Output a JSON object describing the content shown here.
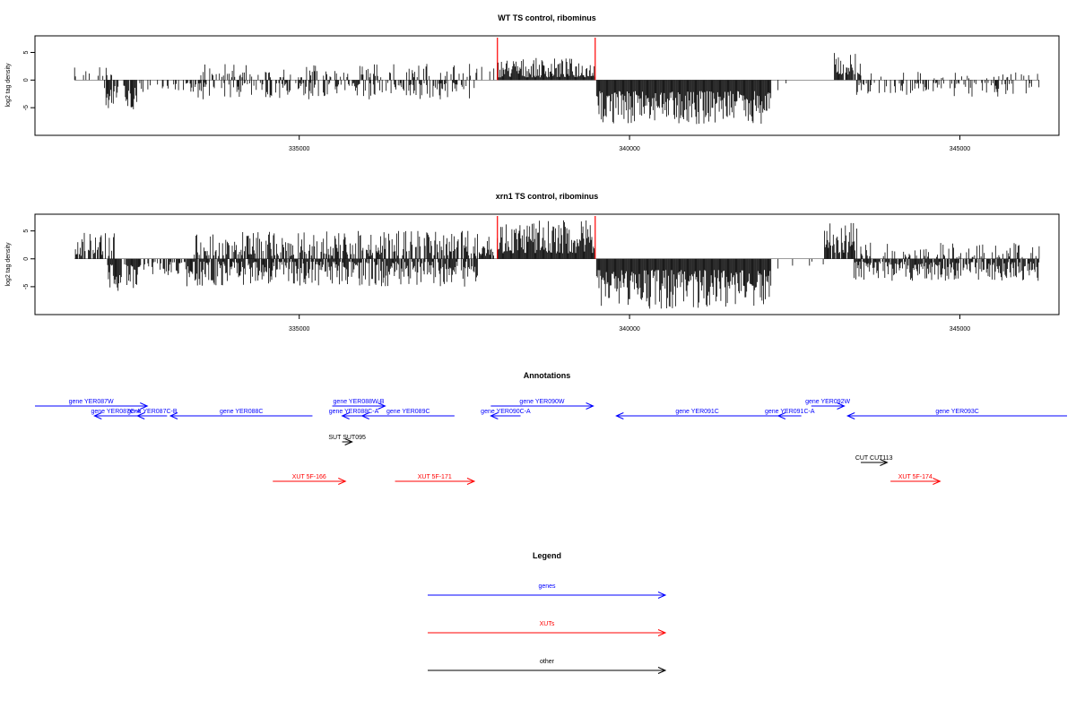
{
  "chart_data": [
    {
      "type": "bar",
      "title": "WT TS control, ribominus",
      "ylabel": "log2 tag density",
      "xlabel": "",
      "xlim": [
        331000,
        346500
      ],
      "ylim": [
        -10,
        8
      ],
      "x_ticks": [
        335000,
        340000,
        345000
      ],
      "x_tick_labels": [
        "335000",
        "340000",
        "345000"
      ],
      "y_ticks": [
        -5,
        0,
        5
      ],
      "y_tick_labels": [
        "-5",
        "0",
        "5"
      ],
      "grid": false,
      "region_markers": [
        338000,
        339480
      ],
      "profile": [
        {
          "start": 331600,
          "end": 332200,
          "sign": 1,
          "min": 0.5,
          "max": 2.5,
          "density": 0.3
        },
        {
          "start": 332050,
          "end": 332550,
          "sign": -1,
          "min": 1,
          "max": 5.5,
          "density": 0.7
        },
        {
          "start": 332550,
          "end": 333250,
          "sign": -1,
          "min": 0.5,
          "max": 2.5,
          "density": 0.3
        },
        {
          "start": 333250,
          "end": 337650,
          "sign": -1,
          "min": 0.5,
          "max": 3.5,
          "density": 0.55
        },
        {
          "start": 333450,
          "end": 337950,
          "sign": 1,
          "min": 0.5,
          "max": 3,
          "density": 0.3
        },
        {
          "start": 338000,
          "end": 339480,
          "sign": 1,
          "min": 0.5,
          "max": 4,
          "density": 1
        },
        {
          "start": 339500,
          "end": 342150,
          "sign": -1,
          "min": 2,
          "max": 8,
          "density": 1
        },
        {
          "start": 342150,
          "end": 343000,
          "sign": -1,
          "min": 0.5,
          "max": 2,
          "density": 0.05
        },
        {
          "start": 343100,
          "end": 343500,
          "sign": 1,
          "min": 1,
          "max": 5,
          "density": 0.8
        },
        {
          "start": 343400,
          "end": 346200,
          "sign": -1,
          "min": 0.5,
          "max": 3,
          "density": 0.4
        },
        {
          "start": 343500,
          "end": 346200,
          "sign": 1,
          "min": 0.3,
          "max": 1.5,
          "density": 0.1
        }
      ]
    },
    {
      "type": "bar",
      "title": "xrn1 TS control, ribominus",
      "ylabel": "log2 tag density",
      "xlabel": "",
      "xlim": [
        331000,
        346500
      ],
      "ylim": [
        -10,
        8
      ],
      "x_ticks": [
        335000,
        340000,
        345000
      ],
      "x_tick_labels": [
        "335000",
        "340000",
        "345000"
      ],
      "y_ticks": [
        -5,
        0,
        5
      ],
      "y_tick_labels": [
        "-5",
        "0",
        "5"
      ],
      "grid": false,
      "region_markers": [
        338000,
        339480
      ],
      "profile": [
        {
          "start": 331600,
          "end": 332200,
          "sign": 1,
          "min": 0.5,
          "max": 5,
          "density": 0.7
        },
        {
          "start": 332100,
          "end": 332550,
          "sign": -1,
          "min": 1,
          "max": 6,
          "density": 0.9
        },
        {
          "start": 332550,
          "end": 333300,
          "sign": -1,
          "min": 0.5,
          "max": 3,
          "density": 0.5
        },
        {
          "start": 333300,
          "end": 337700,
          "sign": -1,
          "min": 0.5,
          "max": 5,
          "density": 0.85
        },
        {
          "start": 333400,
          "end": 337950,
          "sign": 1,
          "min": 0.5,
          "max": 5,
          "density": 0.6
        },
        {
          "start": 338000,
          "end": 339480,
          "sign": 1,
          "min": 1,
          "max": 7,
          "density": 1
        },
        {
          "start": 339500,
          "end": 342150,
          "sign": -1,
          "min": 2,
          "max": 9,
          "density": 1
        },
        {
          "start": 342150,
          "end": 343000,
          "sign": -1,
          "min": 0.5,
          "max": 2.5,
          "density": 0.08
        },
        {
          "start": 342950,
          "end": 343450,
          "sign": 1,
          "min": 1,
          "max": 6.5,
          "density": 0.9
        },
        {
          "start": 343400,
          "end": 346200,
          "sign": -1,
          "min": 0.5,
          "max": 4,
          "density": 0.85
        },
        {
          "start": 343500,
          "end": 346200,
          "sign": 1,
          "min": 0.3,
          "max": 3,
          "density": 0.3
        }
      ]
    }
  ],
  "annotations": {
    "title": "Annotations",
    "features": [
      {
        "label": "gene YER087W",
        "start": 331000,
        "end": 332700,
        "strand": "+",
        "category": "genes",
        "track": 0
      },
      {
        "label": "gene YER087C-A",
        "start": 331900,
        "end": 332550,
        "strand": "-",
        "category": "genes",
        "track": 1
      },
      {
        "label": "gene YER087C-B",
        "start": 332550,
        "end": 333000,
        "strand": "-",
        "category": "genes",
        "track": 1
      },
      {
        "label": "gene YER088C",
        "start": 333050,
        "end": 335200,
        "strand": "-",
        "category": "genes",
        "track": 1
      },
      {
        "label": "gene YER088W-B",
        "start": 335500,
        "end": 336300,
        "strand": "+",
        "category": "genes",
        "track": 0
      },
      {
        "label": "gene YER088C-A",
        "start": 335650,
        "end": 336000,
        "strand": "-",
        "category": "genes",
        "track": 1
      },
      {
        "label": "gene YER089C",
        "start": 335950,
        "end": 337350,
        "strand": "-",
        "category": "genes",
        "track": 1
      },
      {
        "label": "gene YER090W",
        "start": 337900,
        "end": 339450,
        "strand": "+",
        "category": "genes",
        "track": 0
      },
      {
        "label": "gene YER090C-A",
        "start": 337900,
        "end": 338350,
        "strand": "-",
        "category": "genes",
        "track": 1
      },
      {
        "label": "gene YER091C",
        "start": 339800,
        "end": 342250,
        "strand": "-",
        "category": "genes",
        "track": 1
      },
      {
        "label": "gene YER091C-A",
        "start": 342250,
        "end": 342600,
        "strand": "-",
        "category": "genes",
        "track": 1
      },
      {
        "label": "gene YER092W",
        "start": 342750,
        "end": 343250,
        "strand": "+",
        "category": "genes",
        "track": 0
      },
      {
        "label": "gene YER093C",
        "start": 343300,
        "end": 346700,
        "strand": "-",
        "category": "genes",
        "track": 1
      },
      {
        "label": "SUT SUT095",
        "start": 335650,
        "end": 335800,
        "strand": "+",
        "category": "other",
        "track": 3
      },
      {
        "label": "CUT CUT113",
        "start": 343500,
        "end": 343900,
        "strand": "+",
        "category": "other",
        "track": 4
      },
      {
        "label": "XUT 5F-166",
        "start": 334600,
        "end": 335700,
        "strand": "+",
        "category": "XUTs",
        "track": 6
      },
      {
        "label": "XUT 5F-171",
        "start": 336450,
        "end": 337650,
        "strand": "+",
        "category": "XUTs",
        "track": 6
      },
      {
        "label": "XUT 5F-174",
        "start": 343950,
        "end": 344700,
        "strand": "+",
        "category": "XUTs",
        "track": 6
      }
    ]
  },
  "legend": {
    "title": "Legend",
    "items": [
      {
        "label": "genes",
        "category": "genes"
      },
      {
        "label": "XUTs",
        "category": "XUTs"
      },
      {
        "label": "other",
        "category": "other"
      }
    ]
  },
  "colors": {
    "genes": "#0000ff",
    "XUTs": "#ff0000",
    "other": "#000000",
    "signal": "#000000",
    "marker": "#ff0000",
    "frame": "#000000"
  }
}
